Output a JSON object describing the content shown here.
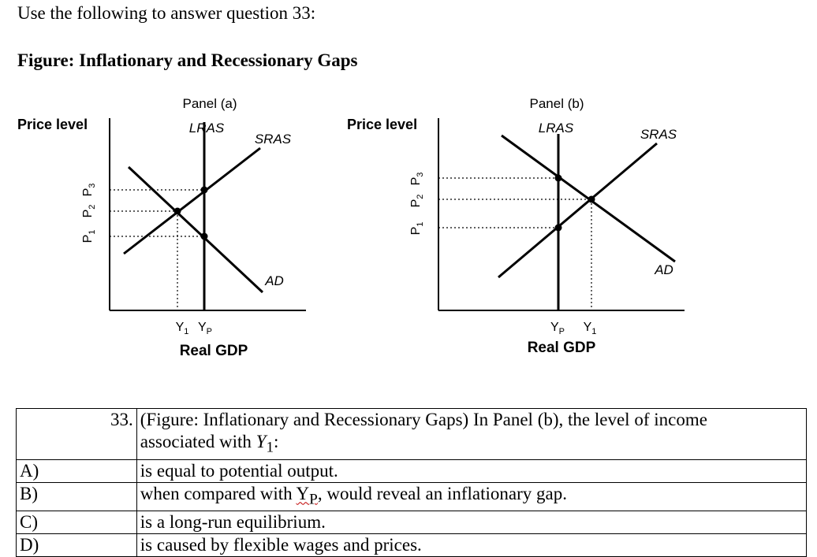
{
  "intro": "Use the following to answer question 33:",
  "figure_title": "Figure: Inflationary and Recessionary Gaps",
  "panel_a": {
    "title": "Panel (a)",
    "ylabel": "Price level",
    "xlabel": "Real GDP",
    "lras": "LRAS",
    "sras": "SRAS",
    "ad": "AD",
    "p3": "P3",
    "p2": "P2",
    "p1": "P1",
    "y1": "Y1",
    "yp": "YP"
  },
  "panel_b": {
    "title": "Panel (b)",
    "ylabel": "Price level",
    "xlabel": "Real GDP",
    "lras": "LRAS",
    "sras": "SRAS",
    "ad": "AD",
    "p3": "P3",
    "p2": "P2",
    "p1": "P1",
    "yp": "YP",
    "y1": "Y1"
  },
  "question": {
    "number": "33.",
    "stem_line1": "(Figure: Inflationary and Recessionary Gaps) In Panel (b), the level of income",
    "stem_line2_prefix": "associated with ",
    "stem_var": "Y",
    "stem_sub": "1",
    "stem_suffix": ":",
    "options": [
      {
        "letter": "A)",
        "text": "is equal to potential output."
      },
      {
        "letter": "B)",
        "prefix": "when compared with ",
        "var": "Y",
        "sub": "P",
        "suffix": ", would reveal an inflationary gap."
      },
      {
        "letter": "C)",
        "text": "is a long-run equilibrium."
      },
      {
        "letter": "D)",
        "text": "is caused by flexible wages and prices."
      }
    ]
  }
}
